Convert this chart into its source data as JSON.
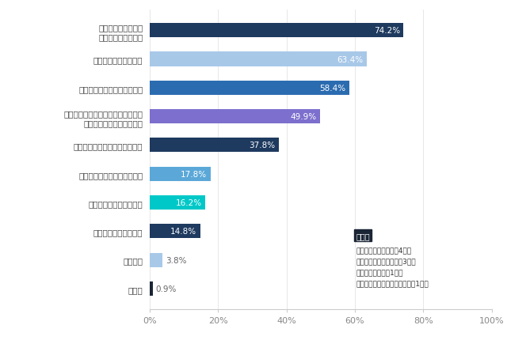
{
  "categories": [
    "移動時間や交通費・\n宿泊費を節約できる",
    "感染症のリスクがない",
    "遠方の企業にも応募しやすい",
    "１日のうちに複数の企業の説明会や\n面接を受けることができる",
    "学業と就職活動を両立しやすい",
    "オンラインの方が話しやすい",
    "自分の表情を確認できる",
    "面接対策が練りやすい",
    "特にない",
    "その他"
  ],
  "values": [
    74.2,
    63.4,
    58.4,
    49.9,
    37.8,
    17.8,
    16.2,
    14.8,
    3.8,
    0.9
  ],
  "colors": [
    "#1e3a5f",
    "#a8c8e8",
    "#2b6cb0",
    "#7c6fcd",
    "#1e3a5f",
    "#5ba8d8",
    "#00c8c8",
    "#1e3a5f",
    "#a8c8e8",
    "#1a2535"
  ],
  "annotation_box_text": "その他",
  "annotation_lines": [
    "・リラックスできる（4件）",
    "・カンペを用意できる（3件）",
    "・メモしやすい（1件）",
    "・説明を繰り返し聆きやすい（1件）"
  ],
  "xlabel_ticks": [
    "0%",
    "20%",
    "40%",
    "60%",
    "80%",
    "100%"
  ],
  "xlim": [
    0,
    100
  ],
  "background_color": "#ffffff",
  "bar_label_color_dark": "#ffffff",
  "bar_label_color_light": "#666666"
}
